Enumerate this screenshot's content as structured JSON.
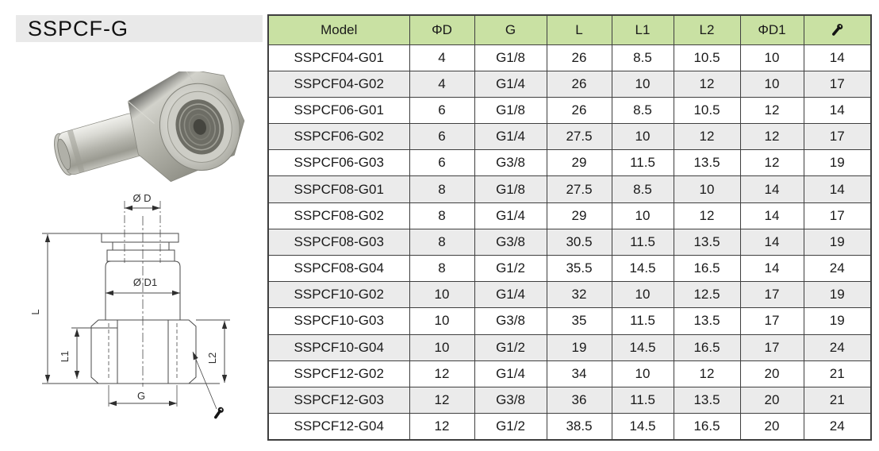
{
  "page": {
    "title": "SSPCF-G"
  },
  "colors": {
    "header_bg": "#c9e1a3",
    "row_alt_bg": "#ebebeb",
    "border": "#3f3f3f",
    "title_bar_bg": "#e9e9e9"
  },
  "photo": {
    "alt_name": "push-in-female-fitting-photo"
  },
  "drawing": {
    "labels": {
      "d": "Ø D",
      "d1": "Ø D1",
      "l": "L",
      "l1": "L1",
      "l2": "L2",
      "g": "G"
    },
    "callout_icon": "wrench-icon"
  },
  "table": {
    "headers": [
      {
        "label": "Model"
      },
      {
        "label": "ΦD"
      },
      {
        "label": "G"
      },
      {
        "label": "L"
      },
      {
        "label": "L1"
      },
      {
        "label": "L2"
      },
      {
        "label": "ΦD1"
      },
      {
        "label": "",
        "icon": "wrench-icon"
      }
    ],
    "rows": [
      [
        "SSPCF04-G01",
        "4",
        "G1/8",
        "26",
        "8.5",
        "10.5",
        "10",
        "14"
      ],
      [
        "SSPCF04-G02",
        "4",
        "G1/4",
        "26",
        "10",
        "12",
        "10",
        "17"
      ],
      [
        "SSPCF06-G01",
        "6",
        "G1/8",
        "26",
        "8.5",
        "10.5",
        "12",
        "14"
      ],
      [
        "SSPCF06-G02",
        "6",
        "G1/4",
        "27.5",
        "10",
        "12",
        "12",
        "17"
      ],
      [
        "SSPCF06-G03",
        "6",
        "G3/8",
        "29",
        "11.5",
        "13.5",
        "12",
        "19"
      ],
      [
        "SSPCF08-G01",
        "8",
        "G1/8",
        "27.5",
        "8.5",
        "10",
        "14",
        "14"
      ],
      [
        "SSPCF08-G02",
        "8",
        "G1/4",
        "29",
        "10",
        "12",
        "14",
        "17"
      ],
      [
        "SSPCF08-G03",
        "8",
        "G3/8",
        "30.5",
        "11.5",
        "13.5",
        "14",
        "19"
      ],
      [
        "SSPCF08-G04",
        "8",
        "G1/2",
        "35.5",
        "14.5",
        "16.5",
        "14",
        "24"
      ],
      [
        "SSPCF10-G02",
        "10",
        "G1/4",
        "32",
        "10",
        "12.5",
        "17",
        "19"
      ],
      [
        "SSPCF10-G03",
        "10",
        "G3/8",
        "35",
        "11.5",
        "13.5",
        "17",
        "19"
      ],
      [
        "SSPCF10-G04",
        "10",
        "G1/2",
        "19",
        "14.5",
        "16.5",
        "17",
        "24"
      ],
      [
        "SSPCF12-G02",
        "12",
        "G1/4",
        "34",
        "10",
        "12",
        "20",
        "21"
      ],
      [
        "SSPCF12-G03",
        "12",
        "G3/8",
        "36",
        "11.5",
        "13.5",
        "20",
        "21"
      ],
      [
        "SSPCF12-G04",
        "12",
        "G1/2",
        "38.5",
        "14.5",
        "16.5",
        "20",
        "24"
      ]
    ]
  }
}
